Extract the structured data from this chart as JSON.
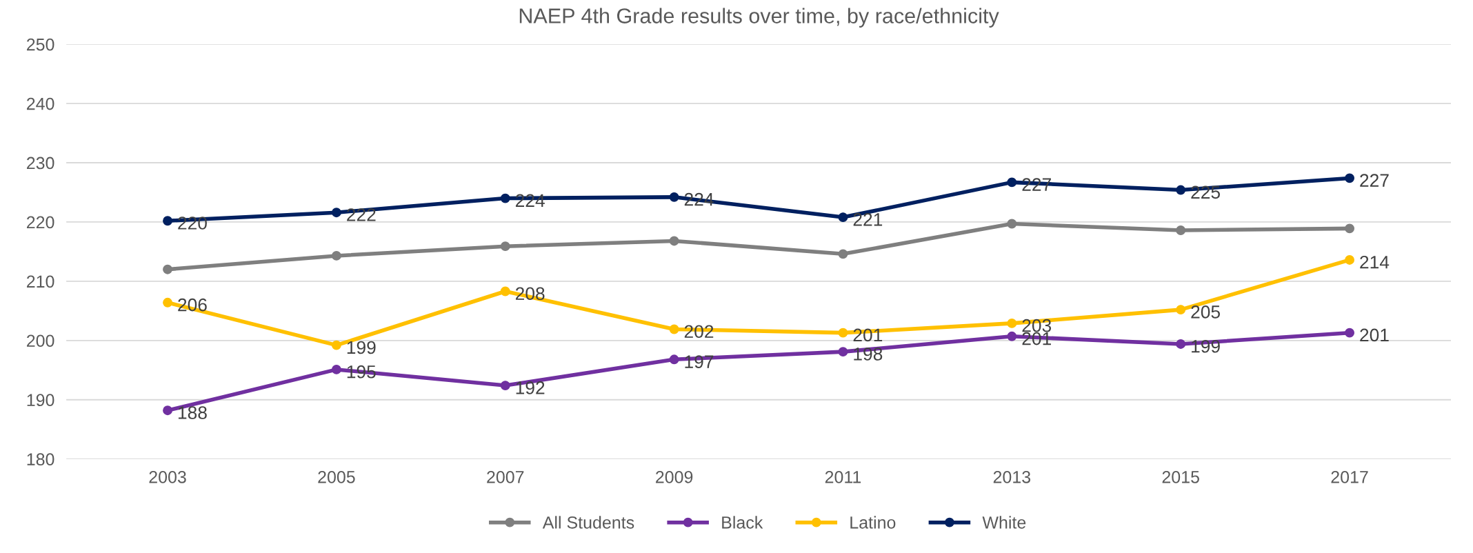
{
  "chart_data": {
    "type": "line",
    "title": "NAEP 4th Grade results over time, by race/ethnicity",
    "categories": [
      "2003",
      "2005",
      "2007",
      "2009",
      "2011",
      "2013",
      "2015",
      "2017"
    ],
    "series": [
      {
        "name": "All Students",
        "color": "#7f7f7f",
        "values": [
          212.0,
          214.3,
          215.9,
          216.8,
          214.6,
          219.7,
          218.6,
          218.9
        ]
      },
      {
        "name": "Black",
        "color": "#7030a0",
        "values": [
          188.2,
          195.1,
          192.4,
          196.8,
          198.1,
          200.7,
          199.4,
          201.3
        ],
        "value_labels": [
          "188",
          "195",
          "192",
          "197",
          "198",
          "201",
          "199",
          "201"
        ]
      },
      {
        "name": "Latino",
        "color": "#ffc000",
        "values": [
          206.4,
          199.2,
          208.3,
          201.9,
          201.3,
          202.9,
          205.2,
          213.6
        ],
        "value_labels": [
          "206",
          "199",
          "208",
          "202",
          "201",
          "203",
          "205",
          "214"
        ]
      },
      {
        "name": "White",
        "color": "#002060",
        "values": [
          220.2,
          221.6,
          224.0,
          224.2,
          220.8,
          226.7,
          225.4,
          227.4
        ],
        "value_labels": [
          "220",
          "222",
          "224",
          "224",
          "221",
          "227",
          "225",
          "227"
        ]
      }
    ],
    "ylim": [
      180,
      250
    ],
    "yticks": [
      180,
      190,
      200,
      210,
      220,
      230,
      240,
      250
    ],
    "grid": "y",
    "legend": "bottom",
    "marker": "circle",
    "line_style": "solid"
  }
}
